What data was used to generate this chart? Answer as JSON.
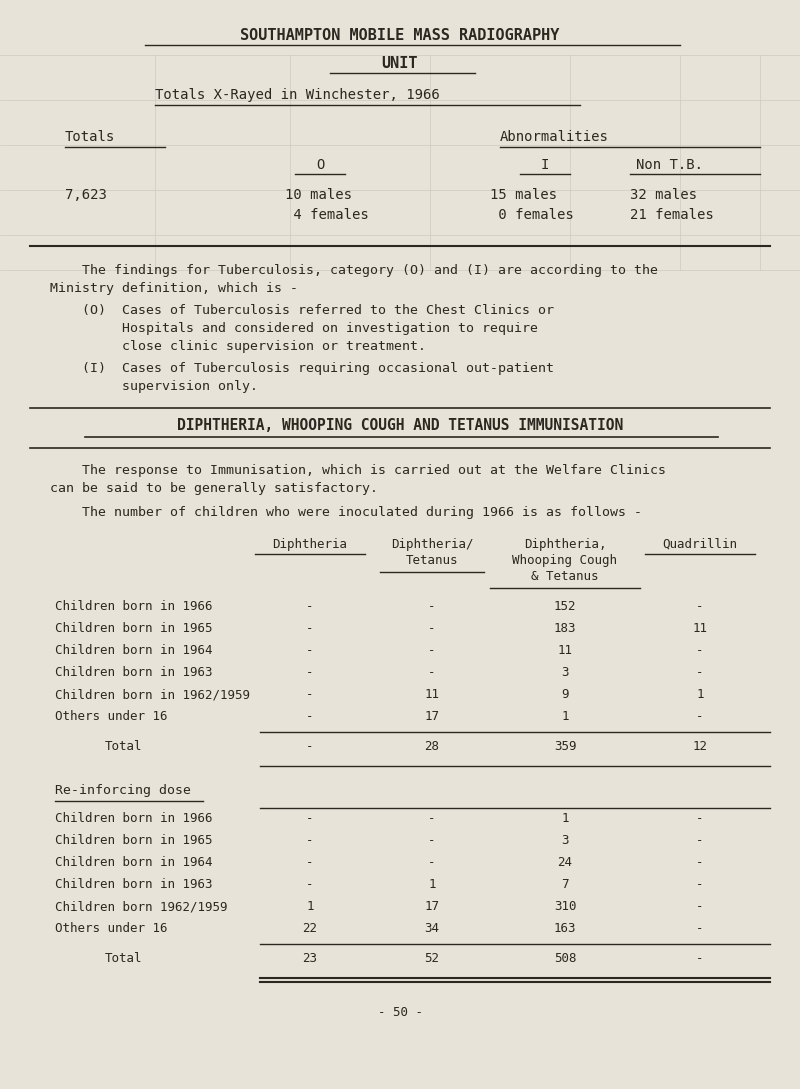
{
  "bg_color": "#e8e3d8",
  "grid_color": "#c8c4bc",
  "text_color": "#2a2820",
  "line_color": "#2a2820",
  "page_width": 8.0,
  "page_height": 10.89,
  "title1": "SOUTHAMPTON MOBILE MASS RADIOGRAPHY",
  "title2": "UNIT",
  "subtitle": "Totals X-Rayed in Winchester, 1966",
  "totals_label": "Totals",
  "abnorm_label": "Abnormalities",
  "col0_label": "O",
  "col1_label": "I",
  "col2_label": "Non T.B.",
  "total_value": "7,623",
  "para1a": "    The findings for Tuberculosis, category (O) and (I) are according to the",
  "para1b": "Ministry definition, which is -",
  "para_Oa": "    (O)  Cases of Tuberculosis referred to the Chest Clinics or",
  "para_Ob": "         Hospitals and considered on investigation to require",
  "para_Oc": "         close clinic supervision or treatment.",
  "para_Ia": "    (I)  Cases of Tuberculosis requiring occasional out-patient",
  "para_Ib": "         supervision only.",
  "diphtheria_heading": "DIPHTHERIA, WHOOPING COUGH AND TETANUS IMMUNISATION",
  "para2a": "    The response to Immunisation, which is carried out at the Welfare Clinics",
  "para2b": "can be said to be generally satisfactory.",
  "para3": "    The number of children who were inoculated during 1966 is as follows -",
  "rows": [
    [
      "Children born in 1966",
      "-",
      "-",
      "152",
      "-"
    ],
    [
      "Children born in 1965",
      "-",
      "-",
      "183",
      "11"
    ],
    [
      "Children born in 1964",
      "-",
      "-",
      "11",
      "-"
    ],
    [
      "Children born in 1963",
      "-",
      "-",
      "3",
      "-"
    ],
    [
      "Children born in 1962/1959",
      "-",
      "11",
      "9",
      "1"
    ],
    [
      "Others under 16",
      "-",
      "17",
      "1",
      "-"
    ]
  ],
  "total_row": [
    "Total",
    "-",
    "28",
    "359",
    "12"
  ],
  "reinf_label": "Re-inforcing dose",
  "rows2": [
    [
      "Children born in 1966",
      "-",
      "-",
      "1",
      "-"
    ],
    [
      "Children born in 1965",
      "-",
      "-",
      "3",
      "-"
    ],
    [
      "Children born in 1964",
      "-",
      "-",
      "24",
      "-"
    ],
    [
      "Children born in 1963",
      "-",
      "1",
      "7",
      "-"
    ],
    [
      "Children born 1962/1959",
      "1",
      "17",
      "310",
      "-"
    ],
    [
      "Others under 16",
      "22",
      "34",
      "163",
      "-"
    ]
  ],
  "total_row2": [
    "Total",
    "23",
    "52",
    "508",
    "-"
  ],
  "footer": "- 50 -"
}
